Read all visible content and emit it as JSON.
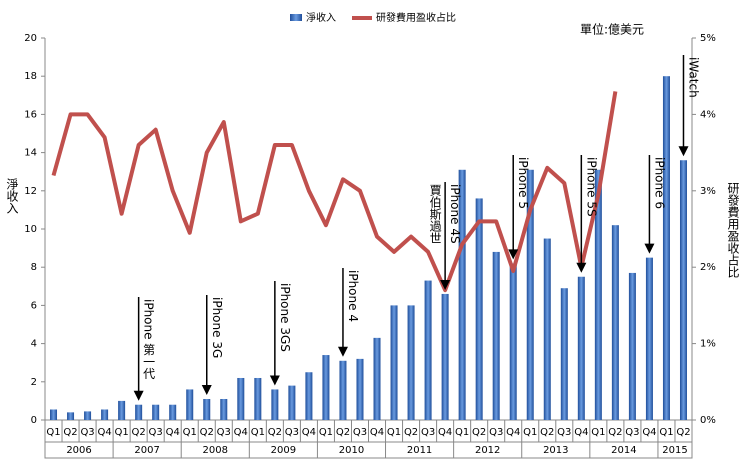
{
  "chart_data": {
    "type": "bar",
    "unit_note": "單位:億美元",
    "y_label": "淨收入",
    "y2_label": "研發費用盈收占比",
    "categories": [
      "Q1",
      "Q2",
      "Q3",
      "Q4",
      "Q1",
      "Q2",
      "Q3",
      "Q4",
      "Q1",
      "Q2",
      "Q3",
      "Q4",
      "Q1",
      "Q2",
      "Q3",
      "Q4",
      "Q1",
      "Q2",
      "Q3",
      "Q4",
      "Q1",
      "Q2",
      "Q3",
      "Q4",
      "Q1",
      "Q2",
      "Q3",
      "Q4",
      "Q1",
      "Q2",
      "Q3",
      "Q4",
      "Q1",
      "Q2",
      "Q3",
      "Q4",
      "Q1",
      "Q2"
    ],
    "years": [
      "2006",
      "2007",
      "2008",
      "2009",
      "2010",
      "2011",
      "2012",
      "2013",
      "2014",
      "2015"
    ],
    "series": [
      {
        "name": "淨收入",
        "color": "#3f6fc1",
        "type": "bar",
        "values": [
          0.55,
          0.4,
          0.45,
          0.55,
          1.0,
          0.8,
          0.8,
          0.8,
          1.6,
          1.1,
          1.1,
          2.2,
          2.2,
          1.6,
          1.8,
          2.5,
          3.4,
          3.1,
          3.2,
          4.3,
          6.0,
          6.0,
          7.3,
          6.6,
          13.1,
          11.6,
          8.8,
          8.2,
          13.1,
          9.5,
          6.9,
          7.5,
          13.1,
          10.2,
          7.7,
          8.5,
          18.0,
          13.6
        ]
      },
      {
        "name": "研發費用盈收占比",
        "color": "#c0504d",
        "type": "line",
        "axis": "y2",
        "values": [
          3.2,
          4.0,
          4.0,
          3.7,
          2.7,
          3.6,
          3.8,
          3.0,
          2.45,
          3.5,
          3.9,
          2.6,
          2.7,
          3.6,
          3.6,
          3.0,
          2.55,
          3.15,
          3.0,
          2.4,
          2.2,
          2.4,
          2.2,
          1.7,
          2.3,
          2.6,
          2.6,
          1.95,
          2.75,
          3.3,
          3.1,
          2.0,
          2.95,
          4.3,
          null,
          null,
          null,
          null
        ]
      }
    ],
    "ylim": [
      0,
      20
    ],
    "yticks": [
      0,
      2,
      4,
      6,
      8,
      10,
      12,
      14,
      16,
      18,
      20
    ],
    "y2lim": [
      0,
      5
    ],
    "y2ticks": [
      {
        "value": 0,
        "label": "0%"
      },
      {
        "value": 1,
        "label": "1%"
      },
      {
        "value": 2,
        "label": "2%"
      },
      {
        "value": 3,
        "label": "3%"
      },
      {
        "value": 4,
        "label": "4%"
      },
      {
        "value": 5,
        "label": "5%"
      }
    ],
    "annotations": [
      {
        "text": "iPhone 第一代",
        "year": "2007",
        "quarter": "Q2"
      },
      {
        "text": "iPhone 3G",
        "year": "2008",
        "quarter": "Q2"
      },
      {
        "text": "iPhone 3GS",
        "year": "2009",
        "quarter": "Q2"
      },
      {
        "text": "iPhone 4",
        "year": "2010",
        "quarter": "Q2"
      },
      {
        "text": "賈伯斯過世",
        "year": "2011",
        "quarter": "Q4"
      },
      {
        "text": "iPhone 4S",
        "year": "2011",
        "quarter": "Q4"
      },
      {
        "text": "iPhone 5",
        "year": "2012",
        "quarter": "Q4"
      },
      {
        "text": "iPhone 5S",
        "year": "2013",
        "quarter": "Q4"
      },
      {
        "text": "iPhone 6",
        "year": "2014",
        "quarter": "Q4"
      },
      {
        "text": "iWatch",
        "year": "2015",
        "quarter": "Q2"
      }
    ]
  }
}
